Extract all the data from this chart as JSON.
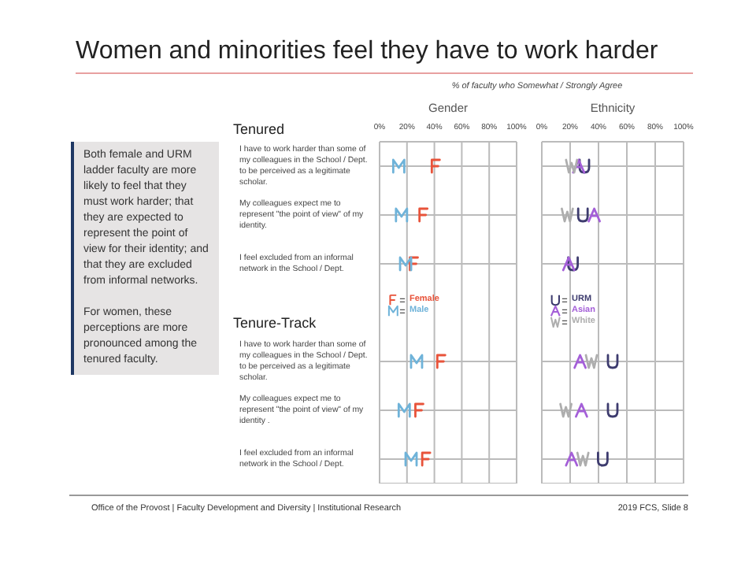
{
  "chart_data": [
    {
      "type": "scatter",
      "orientation": "horizontal",
      "title": "Gender",
      "categories": [
        "I have to work harder than some of my colleagues in the School / Dept. to be perceived as a legitimate scholar.",
        "My colleagues expect me to represent \"the point of view\" of my identity.",
        "I feel excluded from an informal network in the School / Dept.",
        null,
        "I have to work harder than some of my colleagues in the School / Dept. to be perceived as a legitimate scholar.",
        "My colleagues expect me to represent \"the point of view\" of my identity .",
        "I feel excluded from an informal network in the School / Dept."
      ],
      "xlim": [
        0,
        100
      ],
      "xticks": [
        {
          "value": 0,
          "label": "0%"
        },
        {
          "value": 20,
          "label": "20%"
        },
        {
          "value": 40,
          "label": "40%"
        },
        {
          "value": 60,
          "label": "60%"
        },
        {
          "value": 80,
          "label": "80%"
        },
        {
          "value": 100,
          "label": "100%"
        }
      ],
      "grid": true,
      "legend": "left",
      "series": [
        {
          "name": "Female",
          "color": "#e8533a",
          "values": [
            41,
            32,
            25,
            null,
            45,
            29,
            34
          ]
        },
        {
          "name": "Male",
          "color": "#6fb3d9",
          "values": [
            14,
            16,
            19,
            null,
            27,
            18,
            23
          ]
        }
      ],
      "annotations": [
        "Women and minorities feel they have to work harder",
        "% of faculty who Somewhat / Strongly Agree",
        "Tenured",
        "Tenure-Track",
        "Both female and URM ladder faculty are more likely to feel that they must work harder; that they are expected to represent the point of view for their identity; and that they are excluded from informal networks.",
        "For women, these perceptions are more pronounced among the tenured faculty.",
        "Office of the Provost | Faculty Development and Diversity | Institutional Research",
        "2019 FCS, Slide 8"
      ]
    },
    {
      "type": "scatter",
      "orientation": "horizontal",
      "title": "Ethnicity",
      "categories": [
        null,
        null,
        null,
        null,
        null,
        null,
        null
      ],
      "xlim": [
        0,
        100
      ],
      "xticks": [
        {
          "value": 0,
          "label": "0%"
        },
        {
          "value": 20,
          "label": "20%"
        },
        {
          "value": 40,
          "label": "40%"
        },
        {
          "value": 60,
          "label": "60%"
        },
        {
          "value": 80,
          "label": "80%"
        },
        {
          "value": 100,
          "label": "100%"
        }
      ],
      "grid": true,
      "legend": "left",
      "series": [
        {
          "name": "URM",
          "color": "#3d3b6e",
          "values": [
            30,
            29,
            22,
            null,
            50,
            50,
            43
          ]
        },
        {
          "name": "Asian",
          "color": "#a45fd8",
          "values": [
            26,
            37,
            19,
            null,
            27,
            28,
            21
          ]
        },
        {
          "name": "White",
          "color": "#aeaeae",
          "values": [
            21,
            18,
            null,
            null,
            35,
            17,
            29
          ]
        }
      ]
    }
  ]
}
